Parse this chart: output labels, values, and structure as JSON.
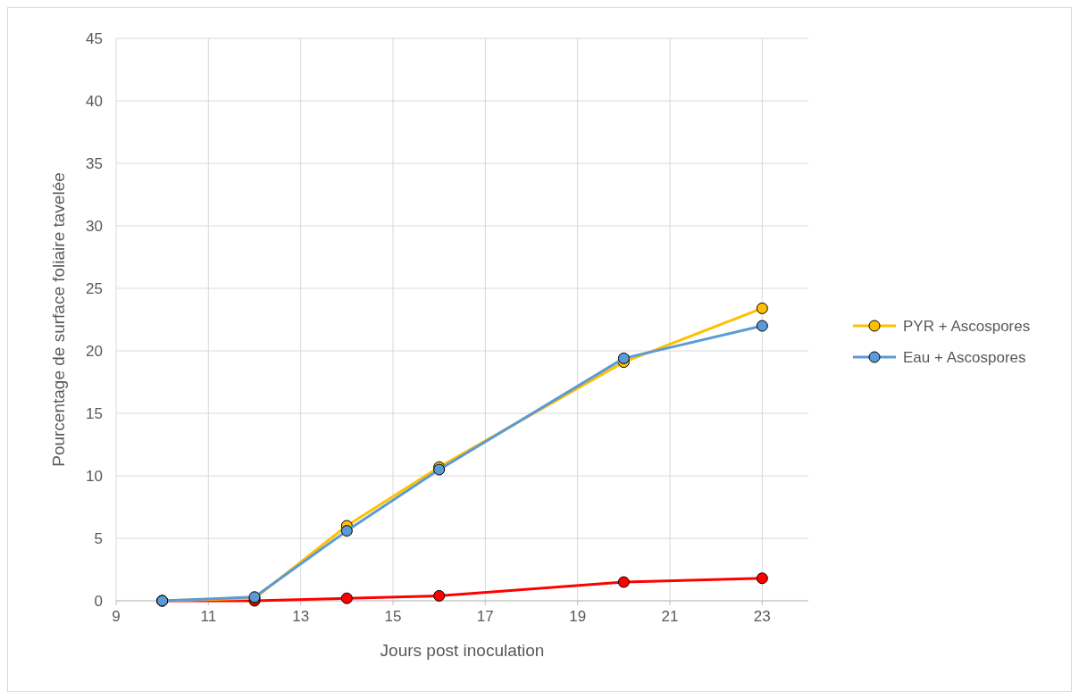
{
  "chart_data": {
    "type": "line",
    "xlabel": "Jours post inoculation",
    "ylabel": "Pourcentage de surface foliaire tavelée",
    "x": [
      10,
      12,
      14,
      16,
      20,
      23
    ],
    "series": [
      {
        "color": "#ff0000",
        "values": [
          0,
          0,
          0.2,
          0.4,
          1.5,
          1.8
        ]
      },
      {
        "name": "PYR + Ascospores",
        "color": "#ffc000",
        "values": [
          0,
          0.2,
          6.0,
          10.7,
          19.1,
          23.4
        ]
      },
      {
        "name": "Eau + Ascospores",
        "color": "#5b9bd5",
        "values": [
          0,
          0.3,
          5.6,
          10.5,
          19.4,
          22.0
        ]
      }
    ],
    "xlim": [
      9,
      24
    ],
    "xticks": [
      9,
      11,
      13,
      15,
      17,
      19,
      21,
      23
    ],
    "ylim": [
      0,
      45
    ],
    "yticks": [
      0,
      5,
      10,
      15,
      20,
      25,
      30,
      35,
      40,
      45
    ],
    "grid": true,
    "legend": "right",
    "marker": "circle",
    "line_style": "solid"
  }
}
